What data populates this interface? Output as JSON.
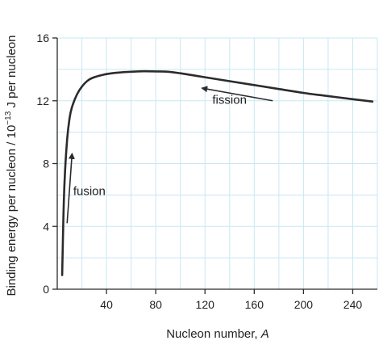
{
  "chart_data": {
    "type": "line",
    "xlabel": "Nucleon number, ",
    "xlabel_italic": "A",
    "ylabel": "Binding energy per nucleon / 10",
    "ylabel_exp": "−13",
    "ylabel_unit": " J per nucleon",
    "xlim": [
      0,
      260
    ],
    "ylim": [
      0,
      16
    ],
    "xticks": [
      "40",
      "80",
      "120",
      "160",
      "200",
      "240"
    ],
    "yticks": [
      "0",
      "4",
      "8",
      "12",
      "16"
    ],
    "grid": true,
    "grid_color": "#c9e7f2",
    "line_color": "#2b2b2b",
    "series": [
      {
        "x": [
          4,
          5,
          6,
          8,
          10,
          12,
          16,
          20,
          25,
          30,
          40,
          50,
          60,
          70,
          80,
          90,
          100,
          120,
          140,
          160,
          180,
          200,
          220,
          240,
          256
        ],
        "values": [
          0.9,
          4.5,
          7.0,
          9.5,
          10.9,
          11.6,
          12.4,
          12.9,
          13.3,
          13.5,
          13.7,
          13.8,
          13.85,
          13.88,
          13.87,
          13.85,
          13.75,
          13.5,
          13.25,
          13.0,
          12.75,
          12.5,
          12.3,
          12.1,
          11.95
        ]
      }
    ],
    "annotations": [
      {
        "text": "fusion",
        "x": 13,
        "y": 6
      },
      {
        "text": "fission",
        "x": 126,
        "y": 11.8
      }
    ],
    "arrows": [
      {
        "name": "fusion-arrow",
        "from": [
          8,
          4.2
        ],
        "to": [
          12,
          8.6
        ]
      },
      {
        "name": "fission-arrow",
        "from": [
          175,
          12.0
        ],
        "to": [
          118,
          12.8
        ]
      }
    ]
  }
}
